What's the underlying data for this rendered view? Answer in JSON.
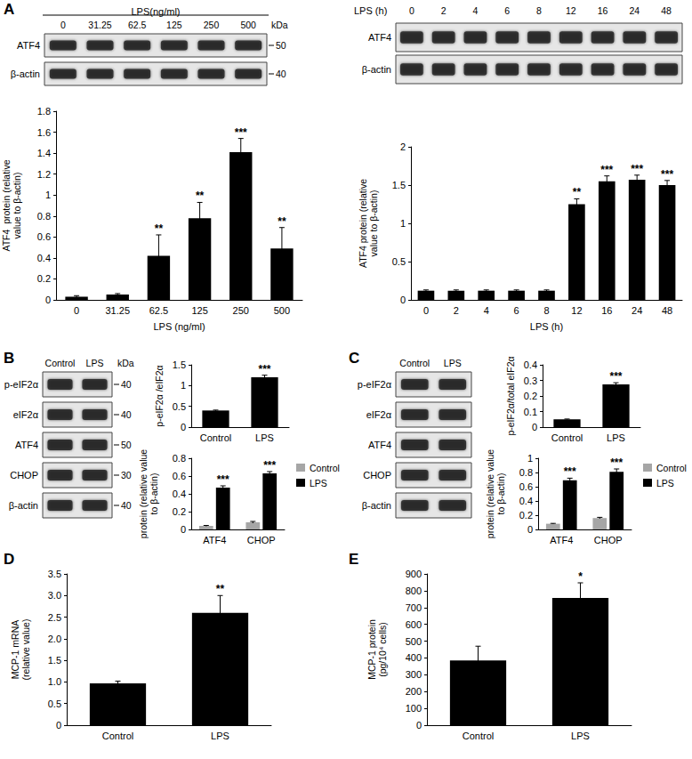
{
  "panel_labels": [
    "A",
    "B",
    "C",
    "D",
    "E"
  ],
  "blots": [
    {
      "lane_title": "LPS(ng/ml)",
      "lanes": [
        "0",
        "31.25",
        "62.5",
        "125",
        "250",
        "500"
      ],
      "rows": [
        "ATF4",
        "β-actin"
      ],
      "unit": "kDa",
      "markers": [
        50,
        40
      ]
    },
    {
      "lane_title": "LPS (h)",
      "lanes": [
        "0",
        "2",
        "4",
        "6",
        "8",
        "12",
        "16",
        "24",
        "48"
      ],
      "rows": [
        "ATF4",
        "β-actin"
      ]
    },
    {
      "lanes": [
        "Control",
        "LPS"
      ],
      "rows": [
        "p-eIF2α",
        "eIF2α",
        "ATF4",
        "CHOP",
        "β-actin"
      ],
      "unit": "kDa",
      "markers": [
        40,
        40,
        50,
        30,
        40
      ]
    },
    {
      "lanes": [
        "Control",
        "LPS"
      ],
      "rows": [
        "p-eIF2α",
        "eIF2α",
        "ATF4",
        "CHOP",
        "β-actin"
      ]
    }
  ],
  "chart_data": [
    {
      "type": "bar",
      "ylabel": "ATF4  protein (relative\nvalue to β-actin)",
      "xlabel": "LPS (ng/ml)",
      "categories": [
        "0",
        "31.25",
        "62.5",
        "125",
        "250",
        "500"
      ],
      "values": [
        0.03,
        0.05,
        0.42,
        0.78,
        1.41,
        0.49
      ],
      "errors": [
        0.01,
        0.01,
        0.2,
        0.15,
        0.13,
        0.2
      ],
      "annotations": [
        null,
        null,
        "**",
        "**",
        "***",
        "**"
      ],
      "color": "#000000",
      "ylim": [
        0,
        1.8
      ],
      "yticks": [
        0,
        0.2,
        0.4,
        0.6,
        0.8,
        1,
        1.2,
        1.4,
        1.6,
        1.8
      ],
      "grid": false
    },
    {
      "type": "bar",
      "ylabel": "ATF4 protein (relative\nvalue to β-actin)",
      "xlabel": "LPS (h)",
      "categories": [
        "0",
        "2",
        "4",
        "6",
        "8",
        "12",
        "16",
        "24",
        "48"
      ],
      "values": [
        0.12,
        0.12,
        0.12,
        0.12,
        0.12,
        1.25,
        1.55,
        1.57,
        1.5
      ],
      "errors": [
        0.01,
        0.01,
        0.01,
        0.01,
        0.01,
        0.07,
        0.07,
        0.06,
        0.06
      ],
      "annotations": [
        null,
        null,
        null,
        null,
        null,
        "**",
        "***",
        "***",
        "***"
      ],
      "color": "#000000",
      "ylim": [
        0,
        2
      ],
      "yticks": [
        0,
        0.5,
        1,
        1.5,
        2
      ],
      "grid": false
    },
    {
      "type": "bar",
      "ylabel": "p-eIF2α /eIF2α",
      "categories": [
        "Control",
        "LPS"
      ],
      "values": [
        0.4,
        1.2
      ],
      "errors": [
        0.01,
        0.05
      ],
      "annotations": [
        null,
        "***"
      ],
      "color": "#000000",
      "ylim": [
        0,
        1.5
      ],
      "yticks": [
        0,
        0.5,
        1,
        1.5
      ],
      "grid": false
    },
    {
      "type": "bar",
      "ylabel": "protein (relative value\nto β-actin)",
      "categories": [
        "ATF4",
        "CHOP"
      ],
      "series": [
        {
          "name": "Control",
          "color": "#a6a6a6",
          "values": [
            0.04,
            0.08
          ],
          "errors": [
            0.005,
            0.01
          ],
          "annotations": [
            null,
            null
          ]
        },
        {
          "name": "LPS",
          "color": "#000000",
          "values": [
            0.47,
            0.63
          ],
          "errors": [
            0.02,
            0.02
          ],
          "annotations": [
            "***",
            "***"
          ]
        }
      ],
      "legend": "right",
      "ylim": [
        0,
        0.8
      ],
      "yticks": [
        0,
        0.2,
        0.4,
        0.6,
        0.8
      ],
      "grid": false
    },
    {
      "type": "bar",
      "ylabel": "p-eIF2α/total eIF2α",
      "categories": [
        "Control",
        "LPS"
      ],
      "values": [
        0.05,
        0.275
      ],
      "errors": [
        0.002,
        0.01
      ],
      "annotations": [
        null,
        "***"
      ],
      "color": "#000000",
      "ylim": [
        0,
        0.4
      ],
      "yticks": [
        0,
        0.1,
        0.2,
        0.3,
        0.4
      ],
      "grid": false
    },
    {
      "type": "bar",
      "ylabel": "protein (relative value\nto β-actin)",
      "categories": [
        "ATF4",
        "CHOP"
      ],
      "series": [
        {
          "name": "Control",
          "color": "#a6a6a6",
          "values": [
            0.08,
            0.16
          ],
          "errors": [
            0.005,
            0.01
          ],
          "annotations": [
            null,
            null
          ]
        },
        {
          "name": "LPS",
          "color": "#000000",
          "values": [
            0.69,
            0.81
          ],
          "errors": [
            0.03,
            0.04
          ],
          "annotations": [
            "***",
            "***"
          ]
        }
      ],
      "legend": "right",
      "ylim": [
        0,
        1
      ],
      "yticks": [
        0,
        0.2,
        0.4,
        0.6,
        0.8,
        1
      ],
      "grid": false
    },
    {
      "type": "bar",
      "ylabel": "MCP-1 mRNA\n(relative value)",
      "categories": [
        "Control",
        "LPS"
      ],
      "values": [
        0.97,
        2.6
      ],
      "errors": [
        0.05,
        0.4
      ],
      "annotations": [
        null,
        "**"
      ],
      "color": "#000000",
      "ylim": [
        0,
        3.5
      ],
      "yticks": [
        0,
        0.5,
        {
          "value": 1,
          "label": "1.0"
        },
        1.5,
        {
          "value": 2,
          "label": "2.0"
        },
        2.5,
        {
          "value": 3,
          "label": "3.0"
        },
        3.5
      ],
      "grid": false
    },
    {
      "type": "bar",
      "ylabel": "MCP-1 protein\n(pg/10⁴ cells)",
      "categories": [
        "Control",
        "LPS"
      ],
      "values": [
        385,
        757
      ],
      "errors": [
        85,
        90
      ],
      "annotations": [
        null,
        "*"
      ],
      "color": "#000000",
      "ylim": [
        0,
        900
      ],
      "yticks": [
        0,
        100,
        200,
        300,
        400,
        500,
        600,
        700,
        800,
        900
      ],
      "grid": false
    }
  ]
}
